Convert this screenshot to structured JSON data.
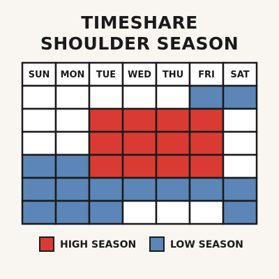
{
  "header": {
    "title_lines": [
      "TIMESHARE",
      "SHOULDER SEASON"
    ]
  },
  "calendar": {
    "days": [
      "SUN",
      "MON",
      "TUE",
      "WED",
      "THU",
      "FRI",
      "SAT"
    ],
    "rows": [
      [
        null,
        null,
        null,
        null,
        null,
        "#5b86b7",
        "#5b86b7"
      ],
      [
        null,
        null,
        "#d93b33",
        "#d93b33",
        "#d93b33",
        "#d93b33",
        null
      ],
      [
        null,
        null,
        "#d93b33",
        "#d93b33",
        "#d93b33",
        "#d93b33",
        null
      ],
      [
        "#5b86b7",
        "#5b86b7",
        "#d93b33",
        "#d93b33",
        "#d93b33",
        "#d93b33",
        null
      ],
      [
        "#5b86b7",
        "#5b86b7",
        "#5b86b7",
        "#5b86b7",
        "#5b86b7",
        "#5b86b7",
        "#5b86b7"
      ],
      [
        "#5b86b7",
        "#5b86b7",
        "#5b86b7",
        null,
        null,
        null,
        "#5b86b7"
      ]
    ]
  },
  "legend": [
    {
      "name": "HIGH SEASON",
      "color": "#d93b33"
    },
    {
      "name": "LOW SEASON",
      "color": "#5b86b7"
    }
  ]
}
